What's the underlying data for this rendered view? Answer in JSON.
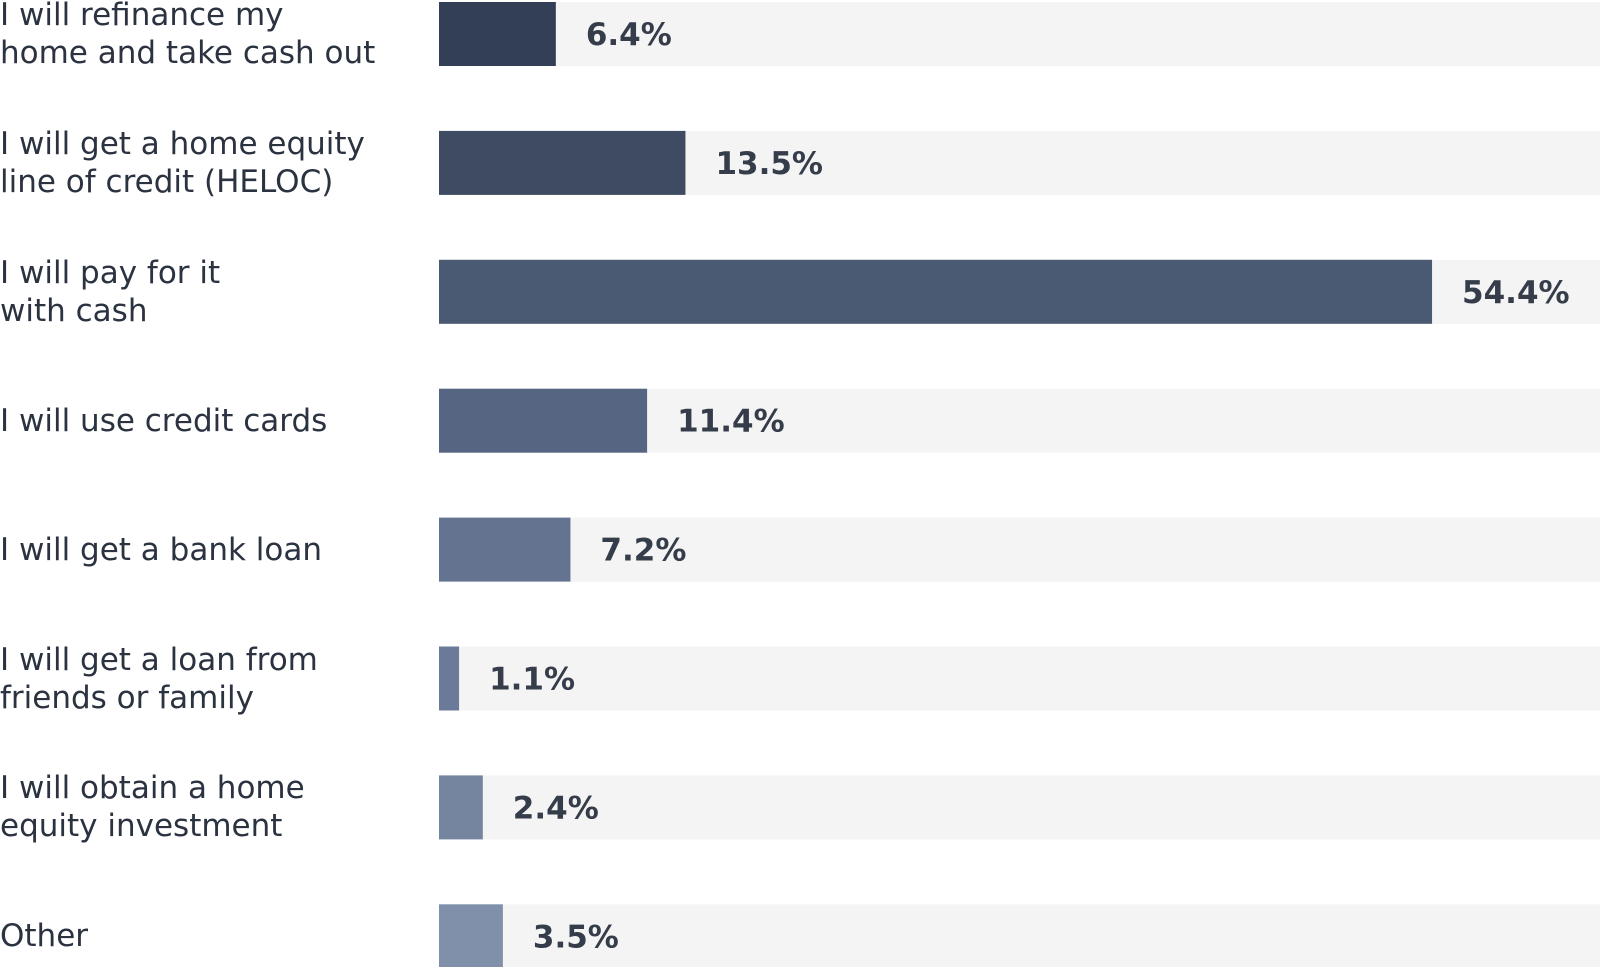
{
  "chart_data": {
    "type": "bar",
    "orientation": "horizontal",
    "categories": [
      "I will refinance my\nhome and take cash out",
      "I will get a home equity\nline of credit (HELOC)",
      "I will pay for it\nwith cash",
      "I will use credit cards",
      "I will get a bank loan",
      "I will get a loan from\nfriends or family",
      "I will obtain a home\nequity investment",
      "Other"
    ],
    "values": [
      6.4,
      13.5,
      54.4,
      11.4,
      7.2,
      1.1,
      2.4,
      3.5
    ],
    "value_labels": [
      "6.4%",
      "13.5%",
      "54.4%",
      "11.4%",
      "7.2%",
      "1.1%",
      "2.4%",
      "3.5%"
    ],
    "unit": "%",
    "xlim": [
      0,
      63.6
    ],
    "bar_colors": [
      "#333f56",
      "#3e4b62",
      "#4a5a73",
      "#566581",
      "#637390",
      "#6b7a98",
      "#75849f",
      "#8190aa"
    ],
    "track_color": "#f4f4f4",
    "grid": false,
    "legend": "none"
  }
}
